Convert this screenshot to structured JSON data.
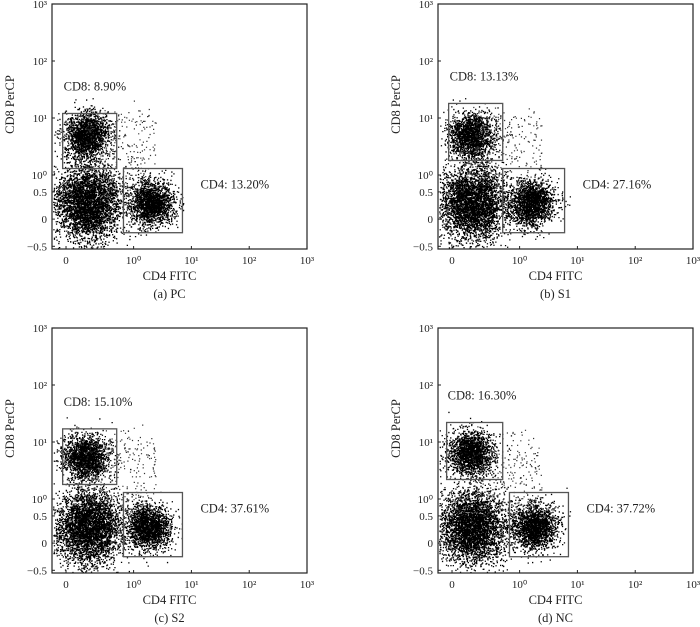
{
  "chart_data": [
    {
      "type": "scatter",
      "panel_id": "a",
      "caption": "(a) PC",
      "xlabel": "CD4 FITC",
      "ylabel": "CD8 PerCP",
      "x_ticks": [
        {
          "value": 0,
          "label": "0"
        },
        {
          "value": 1,
          "label": "10⁰"
        },
        {
          "value": 10,
          "label": "10¹"
        },
        {
          "value": 100,
          "label": "10²"
        },
        {
          "value": 1000,
          "label": "10³"
        }
      ],
      "y_ticks": [
        {
          "value": -0.5,
          "label": "−0.5"
        },
        {
          "value": 0,
          "label": "0"
        },
        {
          "value": 0.5,
          "label": "0.5"
        },
        {
          "value": 1,
          "label": "10⁰"
        },
        {
          "value": 10,
          "label": "10¹"
        },
        {
          "value": 100,
          "label": "10²"
        },
        {
          "value": 1000,
          "label": "10³"
        }
      ],
      "xlim": [
        -0.1,
        1000
      ],
      "ylim": [
        -0.5,
        1000
      ],
      "gates": [
        {
          "name": "CD8",
          "label": "CD8: 8.90%",
          "percent": 8.9,
          "x": [
            -0.05,
            0.75
          ],
          "y": [
            1.3,
            12
          ]
        },
        {
          "name": "CD4",
          "label": "CD4: 13.20%",
          "percent": 13.2,
          "x": [
            0.85,
            7
          ],
          "y": [
            -0.25,
            1.3
          ]
        }
      ],
      "populations": [
        {
          "name": "double-negative",
          "x_center": 0.32,
          "y_center": 0.3,
          "spread": "large",
          "density": "very high"
        },
        {
          "name": "CD8+",
          "x_center": 0.3,
          "y_center": 5,
          "spread": "medium",
          "density": "high"
        },
        {
          "name": "CD4+",
          "x_center": 2.0,
          "y_center": 0.3,
          "spread": "medium",
          "density": "high"
        }
      ]
    },
    {
      "type": "scatter",
      "panel_id": "b",
      "caption": "(b) S1",
      "xlabel": "CD4 FITC",
      "ylabel": "CD8 PerCP",
      "x_ticks": [
        {
          "value": 0,
          "label": "0"
        },
        {
          "value": 1,
          "label": "10⁰"
        },
        {
          "value": 10,
          "label": "10¹"
        },
        {
          "value": 100,
          "label": "10²"
        },
        {
          "value": 1000,
          "label": "10³"
        }
      ],
      "y_ticks": [
        {
          "value": -0.5,
          "label": "−0.5"
        },
        {
          "value": 0,
          "label": "0"
        },
        {
          "value": 0.5,
          "label": "0.5"
        },
        {
          "value": 1,
          "label": "10⁰"
        },
        {
          "value": 10,
          "label": "10¹"
        },
        {
          "value": 100,
          "label": "10²"
        },
        {
          "value": 1000,
          "label": "10³"
        }
      ],
      "xlim": [
        -0.1,
        1000
      ],
      "ylim": [
        -0.5,
        1000
      ],
      "gates": [
        {
          "name": "CD8",
          "label": "CD8: 13.13%",
          "percent": 13.13,
          "x": [
            -0.05,
            0.75
          ],
          "y": [
            1.8,
            18
          ]
        },
        {
          "name": "CD4",
          "label": "CD4: 27.16%",
          "percent": 27.16,
          "x": [
            0.75,
            6
          ],
          "y": [
            -0.25,
            1.3
          ]
        }
      ],
      "populations": [
        {
          "name": "double-negative",
          "x_center": 0.3,
          "y_center": 0.3,
          "spread": "large",
          "density": "very high"
        },
        {
          "name": "CD8+",
          "x_center": 0.28,
          "y_center": 5,
          "spread": "medium",
          "density": "high"
        },
        {
          "name": "CD4+",
          "x_center": 1.6,
          "y_center": 0.3,
          "spread": "medium",
          "density": "high"
        }
      ]
    },
    {
      "type": "scatter",
      "panel_id": "c",
      "caption": "(c) S2",
      "xlabel": "CD4 FITC",
      "ylabel": "CD8 PerCP",
      "x_ticks": [
        {
          "value": 0,
          "label": "0"
        },
        {
          "value": 1,
          "label": "10⁰"
        },
        {
          "value": 10,
          "label": "10¹"
        },
        {
          "value": 100,
          "label": "10²"
        },
        {
          "value": 1000,
          "label": "10³"
        }
      ],
      "y_ticks": [
        {
          "value": -0.5,
          "label": "−0.5"
        },
        {
          "value": 0,
          "label": "0"
        },
        {
          "value": 0.5,
          "label": "0.5"
        },
        {
          "value": 1,
          "label": "10⁰"
        },
        {
          "value": 10,
          "label": "10¹"
        },
        {
          "value": 100,
          "label": "10²"
        },
        {
          "value": 1000,
          "label": "10³"
        }
      ],
      "xlim": [
        -0.1,
        1000
      ],
      "ylim": [
        -0.5,
        1000
      ],
      "gates": [
        {
          "name": "CD8",
          "label": "CD8: 15.10%",
          "percent": 15.1,
          "x": [
            -0.05,
            0.75
          ],
          "y": [
            1.8,
            17
          ]
        },
        {
          "name": "CD4",
          "label": "CD4: 37.61%",
          "percent": 37.61,
          "x": [
            0.85,
            7
          ],
          "y": [
            -0.25,
            1.3
          ]
        }
      ],
      "populations": [
        {
          "name": "double-negative",
          "x_center": 0.32,
          "y_center": 0.3,
          "spread": "large",
          "density": "very high"
        },
        {
          "name": "CD8+",
          "x_center": 0.28,
          "y_center": 5.5,
          "spread": "medium",
          "density": "high"
        },
        {
          "name": "CD4+",
          "x_center": 1.8,
          "y_center": 0.3,
          "spread": "medium",
          "density": "high"
        }
      ]
    },
    {
      "type": "scatter",
      "panel_id": "d",
      "caption": "(d) NC",
      "xlabel": "CD4 FITC",
      "ylabel": "CD8 PerCP",
      "x_ticks": [
        {
          "value": 0,
          "label": "0"
        },
        {
          "value": 1,
          "label": "10⁰"
        },
        {
          "value": 10,
          "label": "10¹"
        },
        {
          "value": 100,
          "label": "10²"
        },
        {
          "value": 1000,
          "label": "10³"
        }
      ],
      "y_ticks": [
        {
          "value": -0.5,
          "label": "−0.5"
        },
        {
          "value": 0,
          "label": "0"
        },
        {
          "value": 0.5,
          "label": "0.5"
        },
        {
          "value": 1,
          "label": "10⁰"
        },
        {
          "value": 10,
          "label": "10¹"
        },
        {
          "value": 100,
          "label": "10²"
        },
        {
          "value": 1000,
          "label": "10³"
        }
      ],
      "xlim": [
        -0.1,
        1000
      ],
      "ylim": [
        -0.5,
        1000
      ],
      "gates": [
        {
          "name": "CD8",
          "label": "CD8: 16.30%",
          "percent": 16.3,
          "x": [
            -0.08,
            0.75
          ],
          "y": [
            2.2,
            22
          ]
        },
        {
          "name": "CD4",
          "label": "CD4: 37.72%",
          "percent": 37.72,
          "x": [
            0.85,
            7
          ],
          "y": [
            -0.25,
            1.3
          ]
        }
      ],
      "populations": [
        {
          "name": "double-negative",
          "x_center": 0.3,
          "y_center": 0.3,
          "spread": "large",
          "density": "very high"
        },
        {
          "name": "CD8+",
          "x_center": 0.28,
          "y_center": 6.5,
          "spread": "medium",
          "density": "high"
        },
        {
          "name": "CD4+",
          "x_center": 1.8,
          "y_center": 0.3,
          "spread": "medium",
          "density": "high"
        }
      ]
    }
  ]
}
